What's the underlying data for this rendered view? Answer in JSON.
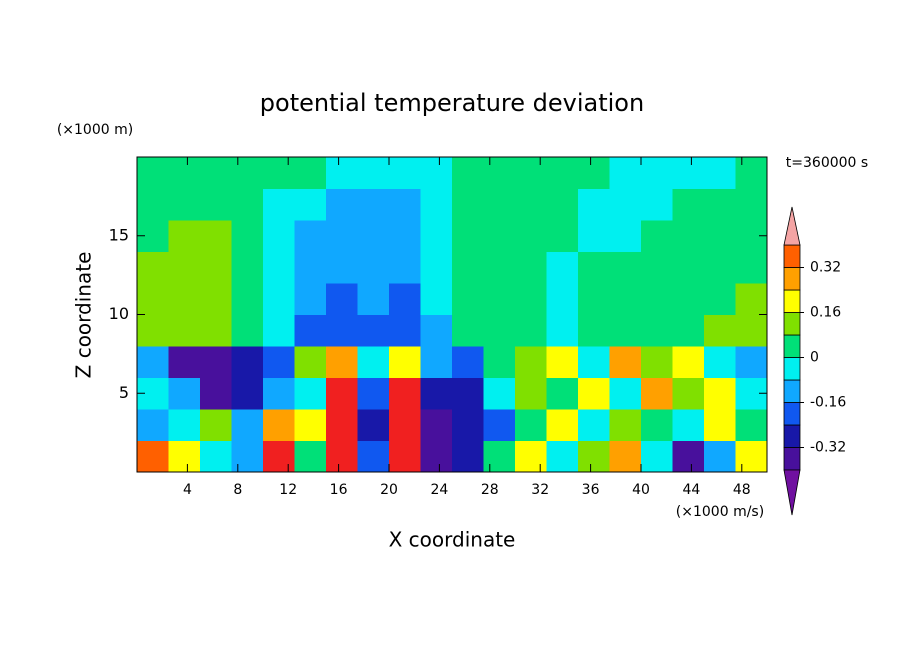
{
  "chart_data": {
    "type": "contour",
    "title": "potential temperature deviation",
    "x_label": "X coordinate",
    "y_label": "Z coordinate",
    "x_unit": "(×1000 m/s)",
    "y_unit": "(×1000 m)",
    "annotation": "t=360000 s",
    "xlim": [
      0,
      50
    ],
    "ylim": [
      0,
      20
    ],
    "xticks": [
      4,
      8,
      12,
      16,
      20,
      24,
      28,
      32,
      36,
      40,
      44,
      48
    ],
    "yticks": [
      5,
      10,
      15
    ],
    "x": [
      1.25,
      3.75,
      6.25,
      8.75,
      11.25,
      13.75,
      16.25,
      18.75,
      21.25,
      23.75,
      26.25,
      28.75,
      31.25,
      33.75,
      36.25,
      38.75,
      41.25,
      43.75,
      46.25,
      48.75
    ],
    "y": [
      1,
      3,
      5,
      7,
      9,
      11,
      13,
      15,
      17,
      19
    ],
    "z": [
      [
        0.36,
        0.2,
        -0.04,
        -0.12,
        0.44,
        0.04,
        0.44,
        -0.2,
        0.44,
        -0.36,
        -0.28,
        0.04,
        0.2,
        -0.04,
        0.12,
        0.28,
        -0.04,
        -0.36,
        -0.12,
        0.2
      ],
      [
        -0.12,
        -0.04,
        0.12,
        -0.12,
        0.28,
        0.2,
        0.44,
        -0.28,
        0.44,
        -0.36,
        -0.28,
        -0.2,
        0.04,
        0.2,
        -0.04,
        0.12,
        0.04,
        -0.04,
        0.2,
        0.04
      ],
      [
        -0.04,
        -0.12,
        -0.36,
        -0.28,
        -0.12,
        -0.04,
        0.44,
        -0.2,
        0.44,
        -0.28,
        -0.28,
        -0.04,
        0.12,
        0.04,
        0.2,
        -0.04,
        0.28,
        0.12,
        0.2,
        -0.04
      ],
      [
        -0.12,
        -0.36,
        -0.36,
        -0.28,
        -0.2,
        0.12,
        0.28,
        -0.04,
        0.2,
        -0.12,
        -0.2,
        0.04,
        0.12,
        0.2,
        -0.04,
        0.28,
        0.12,
        0.2,
        -0.04,
        -0.12
      ],
      [
        0.12,
        0.12,
        0.12,
        0.04,
        -0.04,
        -0.2,
        -0.2,
        -0.2,
        -0.2,
        -0.12,
        0.04,
        0.04,
        0.04,
        -0.04,
        0.04,
        0.04,
        0.04,
        0.04,
        0.12,
        0.12
      ],
      [
        0.12,
        0.12,
        0.12,
        0.04,
        -0.04,
        -0.12,
        -0.2,
        -0.12,
        -0.2,
        -0.04,
        0.04,
        0.04,
        0.04,
        -0.04,
        0.04,
        0.04,
        0.04,
        0.04,
        0.04,
        0.12
      ],
      [
        0.12,
        0.12,
        0.12,
        0.04,
        -0.04,
        -0.12,
        -0.12,
        -0.12,
        -0.12,
        -0.04,
        0.04,
        0.04,
        0.04,
        -0.04,
        0.04,
        0.04,
        0.04,
        0.04,
        0.04,
        0.04
      ],
      [
        0.04,
        0.12,
        0.12,
        0.04,
        -0.04,
        -0.12,
        -0.12,
        -0.12,
        -0.12,
        -0.04,
        0.04,
        0.04,
        0.04,
        0.04,
        -0.04,
        -0.04,
        0.04,
        0.04,
        0.04,
        0.04
      ],
      [
        0.04,
        0.04,
        0.04,
        0.04,
        -0.04,
        -0.04,
        -0.12,
        -0.12,
        -0.12,
        -0.04,
        0.04,
        0.04,
        0.04,
        0.04,
        -0.04,
        -0.04,
        -0.04,
        0.04,
        0.04,
        0.04
      ],
      [
        0.04,
        0.04,
        0.04,
        0.04,
        0.04,
        0.04,
        -0.04,
        -0.04,
        -0.04,
        -0.04,
        0.04,
        0.04,
        0.04,
        0.04,
        0.04,
        -0.04,
        -0.04,
        -0.04,
        -0.04,
        0.04
      ]
    ],
    "levels": [
      -0.4,
      -0.32,
      -0.24,
      -0.16,
      -0.08,
      0,
      0.08,
      0.16,
      0.24,
      0.32,
      0.4
    ],
    "colors": [
      "#7010a0",
      "#48109c",
      "#1818a8",
      "#1058f0",
      "#10a8ff",
      "#00f0f0",
      "#00e078",
      "#80e000",
      "#ffff00",
      "#ffa000",
      "#ff6000",
      "#f02020",
      "#f4a4a4"
    ],
    "colorbar_ticks": [
      -0.32,
      -0.16,
      0,
      0.16,
      0.32
    ]
  }
}
